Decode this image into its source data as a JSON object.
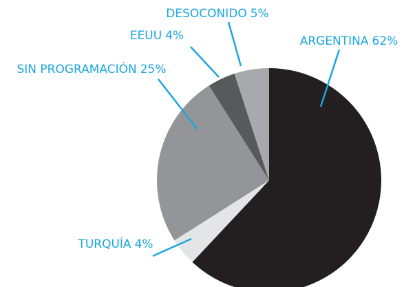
{
  "chart_data": {
    "type": "pie",
    "categories": [
      "ARGENTINA",
      "TURQUÍA",
      "SIN PROGRAMACIÓN",
      "EEUU",
      "DESOCONIDO"
    ],
    "values": [
      62,
      4,
      25,
      4,
      5
    ],
    "value_labels": [
      "62%",
      "4%",
      "25%",
      "4%",
      "5%"
    ],
    "colors": [
      "#231f20",
      "#e4e5e6",
      "#939598",
      "#58595b",
      "#a7a9ac"
    ]
  }
}
